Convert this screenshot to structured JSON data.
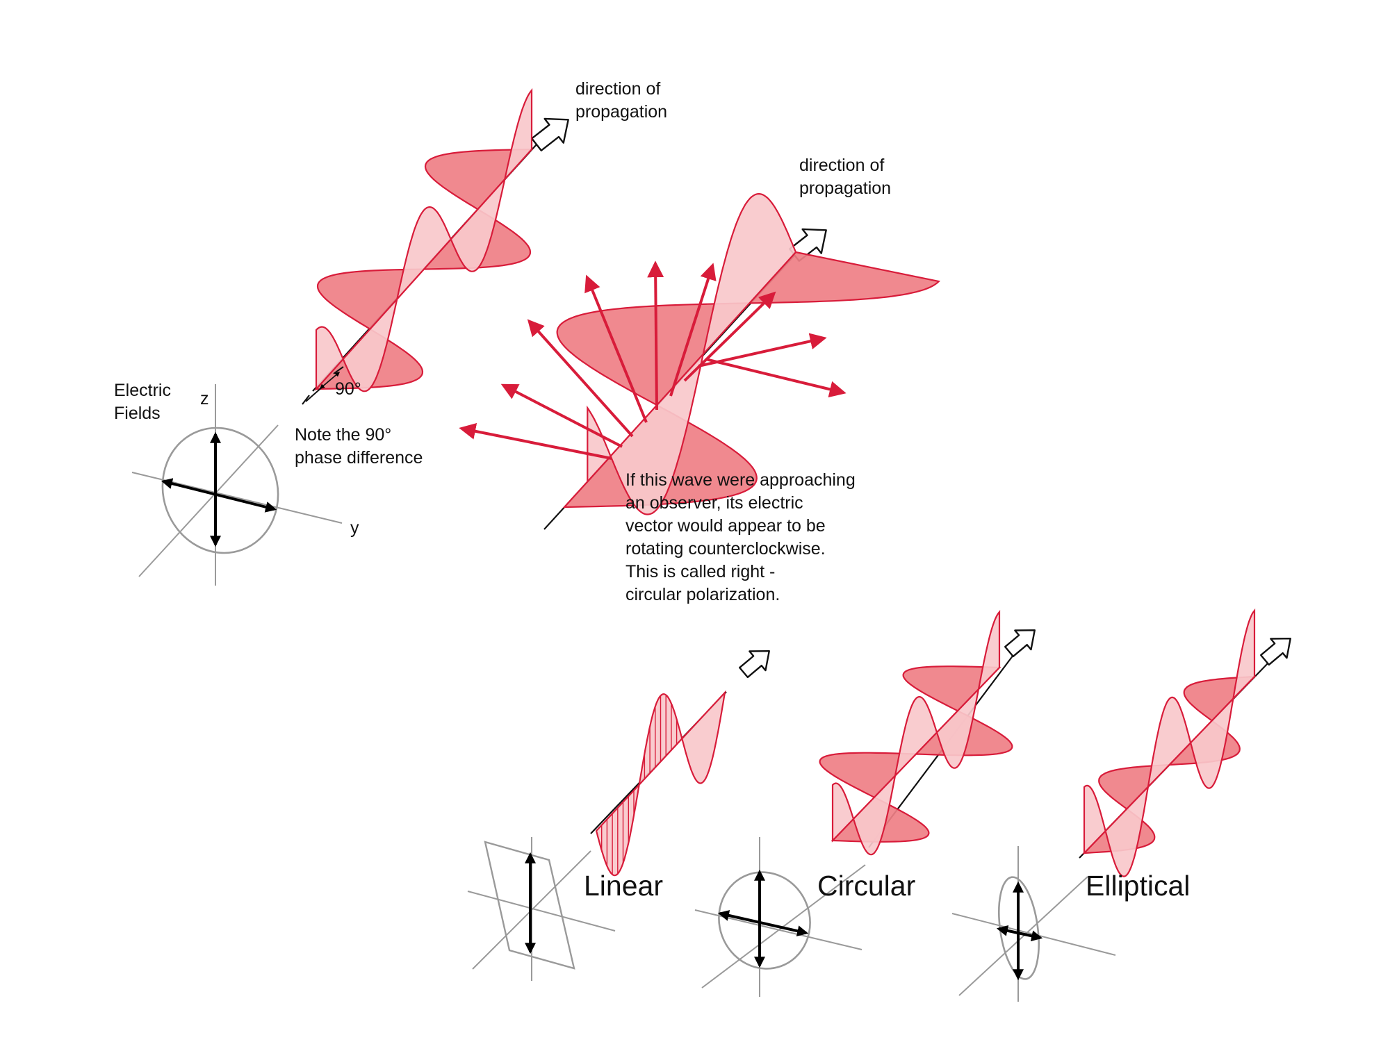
{
  "colors": {
    "wave_stroke": "#d81c3a",
    "wave_fill_dark": "#ef7f86",
    "wave_fill_light": "#f9c8cb",
    "axis_gray": "#9a9a9a",
    "vector_black": "#000000"
  },
  "labels": {
    "propagation_1": "direction of\npropagation",
    "propagation_2": "direction of\npropagation",
    "electric_fields": "Electric\nFields",
    "axis_z": "z",
    "axis_y": "y",
    "phase_angle": "90°",
    "phase_note": "Note the 90°\nphase difference",
    "observer_note": "If this wave were approaching\nan observer, its electric\nvector would appear to be\nrotating counterclockwise.\nThis is called right -\ncircular polarization."
  },
  "polarization_types": [
    "Linear",
    "Circular",
    "Elliptical"
  ],
  "icons": [
    "hollow-arrow-icon",
    "vector-arrow-icon"
  ]
}
